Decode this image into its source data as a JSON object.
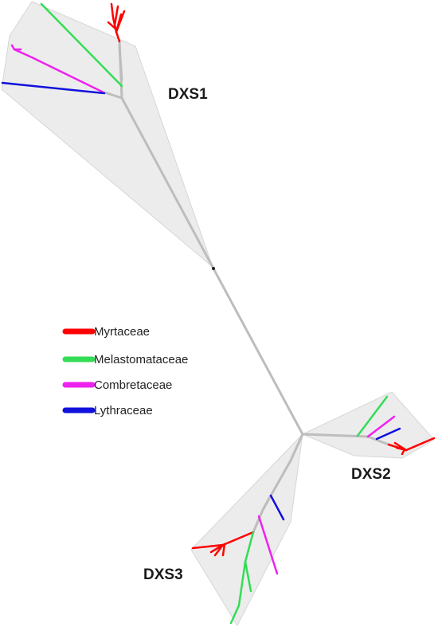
{
  "clades": [
    {
      "id": "dxs1",
      "label": "DXS1"
    },
    {
      "id": "dxs2",
      "label": "DXS2"
    },
    {
      "id": "dxs3",
      "label": "DXS3"
    }
  ],
  "legend": [
    {
      "label": "Myrtaceae",
      "color": "#ff0000"
    },
    {
      "label": "Melastomataceae",
      "color": "#33dd55"
    },
    {
      "label": "Combretaceae",
      "color": "#ee22ee"
    },
    {
      "label": "Lythraceae",
      "color": "#1111dd"
    }
  ],
  "colors": {
    "clade_fill": "#ececec",
    "backbone": "#bdbdbd"
  }
}
